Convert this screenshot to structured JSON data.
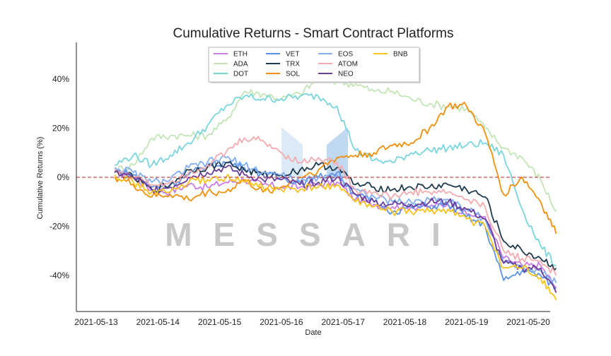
{
  "chart_data": {
    "type": "line",
    "title": "Cumulative Returns - Smart Contract Platforms",
    "xlabel": "Date",
    "ylabel": "Cumulative Returns (%)",
    "x_ticks": [
      "2021-05-13",
      "2021-05-14",
      "2021-05-15",
      "2021-05-16",
      "2021-05-17",
      "2021-05-18",
      "2021-05-19",
      "2021-05-20"
    ],
    "y_ticks": [
      "-40%",
      "-20%",
      "0%",
      "20%",
      "40%"
    ],
    "y_tick_values": [
      -40,
      -20,
      0,
      20,
      40
    ],
    "xlim": [
      0,
      7.7
    ],
    "ylim": [
      -55,
      55
    ],
    "grid": false,
    "reference_line": {
      "y": 0,
      "color": "#c44e52",
      "style": "dashed"
    },
    "legend_position": "top-center",
    "x_unit": "days since 2021-05-13",
    "series": [
      {
        "name": "ETH",
        "color": "#c77ce6",
        "points": [
          [
            0.3,
            2
          ],
          [
            0.6,
            0
          ],
          [
            0.9,
            -5
          ],
          [
            1.2,
            -6
          ],
          [
            1.5,
            -3
          ],
          [
            1.8,
            -4
          ],
          [
            2.1,
            -2
          ],
          [
            2.4,
            -1
          ],
          [
            2.7,
            -3
          ],
          [
            3.0,
            -4
          ],
          [
            3.3,
            -4
          ],
          [
            3.6,
            -3
          ],
          [
            3.9,
            -2
          ],
          [
            4.2,
            -9
          ],
          [
            4.5,
            -11
          ],
          [
            4.8,
            -12
          ],
          [
            5.1,
            -12
          ],
          [
            5.4,
            -12
          ],
          [
            5.7,
            -11
          ],
          [
            6.0,
            -15
          ],
          [
            6.3,
            -16
          ],
          [
            6.6,
            -33
          ],
          [
            6.9,
            -36
          ],
          [
            7.2,
            -36
          ],
          [
            7.45,
            -45
          ]
        ]
      },
      {
        "name": "ADA",
        "color": "#c3e5b5",
        "points": [
          [
            0.3,
            3
          ],
          [
            0.6,
            5
          ],
          [
            0.9,
            16
          ],
          [
            1.2,
            17
          ],
          [
            1.5,
            17
          ],
          [
            1.8,
            17
          ],
          [
            2.1,
            23
          ],
          [
            2.4,
            35
          ],
          [
            2.7,
            34
          ],
          [
            3.0,
            32
          ],
          [
            3.3,
            34
          ],
          [
            3.6,
            40
          ],
          [
            3.9,
            39
          ],
          [
            4.2,
            38
          ],
          [
            4.5,
            35
          ],
          [
            4.8,
            35
          ],
          [
            5.1,
            32
          ],
          [
            5.4,
            30
          ],
          [
            5.7,
            29
          ],
          [
            6.0,
            28
          ],
          [
            6.3,
            20
          ],
          [
            6.6,
            12
          ],
          [
            6.9,
            8
          ],
          [
            7.2,
            -1
          ],
          [
            7.45,
            -14
          ]
        ]
      },
      {
        "name": "DOT",
        "color": "#7ad5dc",
        "points": [
          [
            0.3,
            5
          ],
          [
            0.6,
            9
          ],
          [
            0.9,
            5
          ],
          [
            1.2,
            9
          ],
          [
            1.5,
            14
          ],
          [
            1.8,
            21
          ],
          [
            2.1,
            29
          ],
          [
            2.4,
            33
          ],
          [
            2.7,
            32
          ],
          [
            3.0,
            32
          ],
          [
            3.3,
            33
          ],
          [
            3.6,
            33
          ],
          [
            3.9,
            29
          ],
          [
            4.2,
            11
          ],
          [
            4.5,
            7
          ],
          [
            4.8,
            6
          ],
          [
            5.1,
            10
          ],
          [
            5.4,
            11
          ],
          [
            5.7,
            12
          ],
          [
            6.0,
            13
          ],
          [
            6.3,
            14
          ],
          [
            6.6,
            9
          ],
          [
            6.9,
            -13
          ],
          [
            7.2,
            -28
          ],
          [
            7.45,
            -36
          ]
        ]
      },
      {
        "name": "VET",
        "color": "#5b92e8",
        "points": [
          [
            0.3,
            3
          ],
          [
            0.6,
            1
          ],
          [
            0.9,
            -4
          ],
          [
            1.2,
            -3
          ],
          [
            1.5,
            1
          ],
          [
            1.8,
            5
          ],
          [
            2.1,
            6
          ],
          [
            2.4,
            4
          ],
          [
            2.7,
            1
          ],
          [
            3.0,
            0
          ],
          [
            3.3,
            -2
          ],
          [
            3.6,
            0
          ],
          [
            3.9,
            2
          ],
          [
            4.2,
            -7
          ],
          [
            4.5,
            -10
          ],
          [
            4.8,
            -14
          ],
          [
            5.1,
            -12
          ],
          [
            5.4,
            -12
          ],
          [
            5.7,
            -11
          ],
          [
            6.0,
            -16
          ],
          [
            6.3,
            -20
          ],
          [
            6.6,
            -42
          ],
          [
            6.9,
            -38
          ],
          [
            7.2,
            -40
          ],
          [
            7.45,
            -45
          ]
        ]
      },
      {
        "name": "TRX",
        "color": "#1f3a4f",
        "points": [
          [
            0.3,
            2
          ],
          [
            0.6,
            0
          ],
          [
            0.9,
            -5
          ],
          [
            1.2,
            -3
          ],
          [
            1.5,
            3
          ],
          [
            1.8,
            4
          ],
          [
            2.1,
            6
          ],
          [
            2.4,
            3
          ],
          [
            2.7,
            1
          ],
          [
            3.0,
            1
          ],
          [
            3.3,
            3
          ],
          [
            3.6,
            5
          ],
          [
            3.9,
            4
          ],
          [
            4.2,
            -3
          ],
          [
            4.5,
            -4
          ],
          [
            4.8,
            -5
          ],
          [
            5.1,
            -4
          ],
          [
            5.4,
            -4
          ],
          [
            5.7,
            -3
          ],
          [
            6.0,
            -5
          ],
          [
            6.3,
            -8
          ],
          [
            6.6,
            -26
          ],
          [
            6.9,
            -30
          ],
          [
            7.2,
            -33
          ],
          [
            7.45,
            -37
          ]
        ]
      },
      {
        "name": "SOL",
        "color": "#f0900c",
        "points": [
          [
            0.3,
            0
          ],
          [
            0.6,
            -3
          ],
          [
            0.9,
            -8
          ],
          [
            1.2,
            -7
          ],
          [
            1.5,
            -9
          ],
          [
            1.8,
            -6
          ],
          [
            2.1,
            -6
          ],
          [
            2.4,
            -1
          ],
          [
            2.7,
            -6
          ],
          [
            3.0,
            -4
          ],
          [
            3.3,
            0
          ],
          [
            3.6,
            3
          ],
          [
            3.9,
            8
          ],
          [
            4.2,
            9
          ],
          [
            4.5,
            10
          ],
          [
            4.8,
            13
          ],
          [
            5.1,
            14
          ],
          [
            5.4,
            20
          ],
          [
            5.7,
            29
          ],
          [
            6.0,
            29
          ],
          [
            6.3,
            18
          ],
          [
            6.6,
            -7
          ],
          [
            6.9,
            0
          ],
          [
            7.2,
            -10
          ],
          [
            7.45,
            -23
          ]
        ]
      },
      {
        "name": "EOS",
        "color": "#80aef0",
        "points": [
          [
            0.3,
            4
          ],
          [
            0.6,
            2
          ],
          [
            0.9,
            -2
          ],
          [
            1.2,
            -1
          ],
          [
            1.5,
            4
          ],
          [
            1.8,
            6
          ],
          [
            2.1,
            8
          ],
          [
            2.4,
            5
          ],
          [
            2.7,
            2
          ],
          [
            3.0,
            1
          ],
          [
            3.3,
            -2
          ],
          [
            3.6,
            0
          ],
          [
            3.9,
            1
          ],
          [
            4.2,
            -5
          ],
          [
            4.5,
            -8
          ],
          [
            4.8,
            -10
          ],
          [
            5.1,
            -10
          ],
          [
            5.4,
            -9
          ],
          [
            5.7,
            -9
          ],
          [
            6.0,
            -13
          ],
          [
            6.3,
            -17
          ],
          [
            6.6,
            -35
          ],
          [
            6.9,
            -36
          ],
          [
            7.2,
            -38
          ],
          [
            7.45,
            -43
          ]
        ]
      },
      {
        "name": "ATOM",
        "color": "#f4abae",
        "points": [
          [
            0.3,
            3
          ],
          [
            0.6,
            0
          ],
          [
            0.9,
            -3
          ],
          [
            1.2,
            -2
          ],
          [
            1.5,
            2
          ],
          [
            1.8,
            5
          ],
          [
            2.1,
            10
          ],
          [
            2.4,
            16
          ],
          [
            2.7,
            15
          ],
          [
            3.0,
            10
          ],
          [
            3.3,
            6
          ],
          [
            3.6,
            8
          ],
          [
            3.9,
            6
          ],
          [
            4.2,
            -5
          ],
          [
            4.5,
            -6
          ],
          [
            4.8,
            -8
          ],
          [
            5.1,
            -6
          ],
          [
            5.4,
            -6
          ],
          [
            5.7,
            -6
          ],
          [
            6.0,
            -9
          ],
          [
            6.3,
            -12
          ],
          [
            6.6,
            -30
          ],
          [
            6.9,
            -33
          ],
          [
            7.2,
            -34
          ],
          [
            7.45,
            -40
          ]
        ]
      },
      {
        "name": "NEO",
        "color": "#6a3d9a",
        "points": [
          [
            0.3,
            2
          ],
          [
            0.6,
            0
          ],
          [
            0.9,
            -5
          ],
          [
            1.2,
            -4
          ],
          [
            1.5,
            0
          ],
          [
            1.8,
            2
          ],
          [
            2.1,
            4
          ],
          [
            2.4,
            1
          ],
          [
            2.7,
            -1
          ],
          [
            3.0,
            -1
          ],
          [
            3.3,
            -3
          ],
          [
            3.6,
            -2
          ],
          [
            3.9,
            0
          ],
          [
            4.2,
            -7
          ],
          [
            4.5,
            -10
          ],
          [
            4.8,
            -11
          ],
          [
            5.1,
            -11
          ],
          [
            5.4,
            -10
          ],
          [
            5.7,
            -10
          ],
          [
            6.0,
            -13
          ],
          [
            6.3,
            -17
          ],
          [
            6.6,
            -35
          ],
          [
            6.9,
            -37
          ],
          [
            7.2,
            -37
          ],
          [
            7.45,
            -47
          ]
        ]
      },
      {
        "name": "BNB",
        "color": "#f7c21b",
        "points": [
          [
            0.3,
            1
          ],
          [
            0.6,
            -2
          ],
          [
            0.9,
            -6
          ],
          [
            1.2,
            -6
          ],
          [
            1.5,
            -2
          ],
          [
            1.8,
            -1
          ],
          [
            2.1,
            0
          ],
          [
            2.4,
            -2
          ],
          [
            2.7,
            -4
          ],
          [
            3.0,
            -5
          ],
          [
            3.3,
            -5
          ],
          [
            3.6,
            -4
          ],
          [
            3.9,
            -3
          ],
          [
            4.2,
            -10
          ],
          [
            4.5,
            -12
          ],
          [
            4.8,
            -14
          ],
          [
            5.1,
            -14
          ],
          [
            5.4,
            -14
          ],
          [
            5.7,
            -13
          ],
          [
            6.0,
            -17
          ],
          [
            6.3,
            -20
          ],
          [
            6.6,
            -37
          ],
          [
            6.9,
            -37
          ],
          [
            7.2,
            -41
          ],
          [
            7.45,
            -50
          ]
        ]
      }
    ]
  },
  "watermark": {
    "text": "MESSARI",
    "color": "#c8c8c8"
  }
}
